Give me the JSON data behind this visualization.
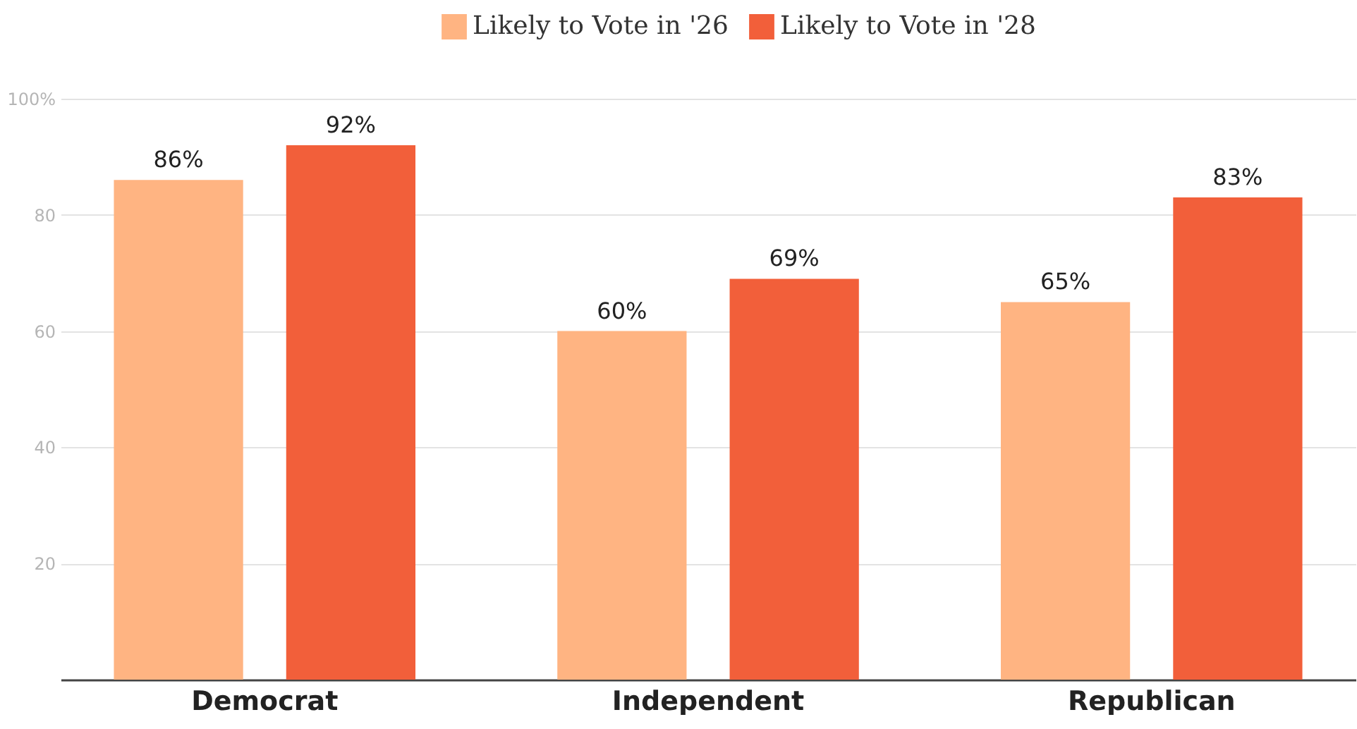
{
  "chart_data": {
    "type": "bar",
    "categories": [
      "Democrat",
      "Independent",
      "Republican"
    ],
    "series": [
      {
        "name": "Likely to Vote in '26",
        "color": "#ffb482",
        "values": [
          86,
          60,
          65
        ],
        "value_labels": [
          "86%",
          "60%",
          "65%"
        ]
      },
      {
        "name": "Likely to Vote in '28",
        "color": "#f25f3a",
        "values": [
          92,
          69,
          83
        ],
        "value_labels": [
          "92%",
          "69%",
          "83%"
        ]
      }
    ],
    "ylim": [
      0,
      100
    ],
    "yticks": [
      20,
      40,
      60,
      80,
      {
        "value": 100,
        "label": "100%"
      }
    ],
    "grid": "y",
    "legend": "top"
  }
}
